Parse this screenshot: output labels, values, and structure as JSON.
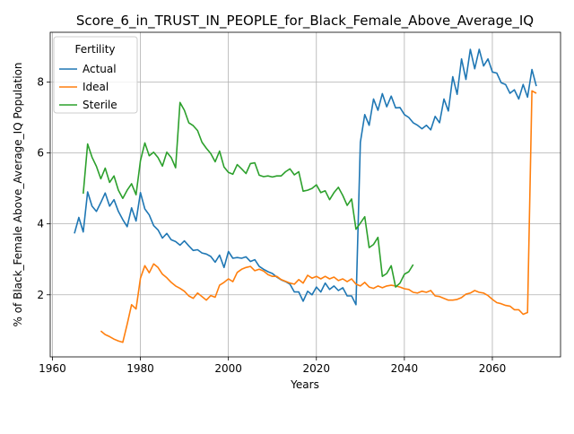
{
  "chart_data": {
    "type": "line",
    "title": "Score_6_in_TRUST_IN_PEOPLE_for_Black_Female_Above_Average_IQ",
    "xlabel": "Years",
    "ylabel": "% of Black_Female Above_Average_IQ Population",
    "xlim": [
      1959.5,
      2075.5
    ],
    "ylim": [
      0.25,
      9.4
    ],
    "xticks": [
      1960,
      1980,
      2000,
      2020,
      2040,
      2060
    ],
    "yticks": [
      2,
      4,
      6,
      8
    ],
    "grid": true,
    "legend": {
      "title": "Fertility",
      "placement": "top-left"
    },
    "series": [
      {
        "name": "Actual",
        "color": "#1f77b4",
        "x": [
          1965,
          1966,
          1967,
          1968,
          1969,
          1970,
          1971,
          1972,
          1973,
          1974,
          1975,
          1976,
          1977,
          1978,
          1979,
          1980,
          1981,
          1982,
          1983,
          1984,
          1985,
          1986,
          1987,
          1988,
          1989,
          1990,
          1991,
          1992,
          1993,
          1994,
          1995,
          1996,
          1997,
          1998,
          1999,
          2000,
          2001,
          2002,
          2003,
          2004,
          2005,
          2006,
          2007,
          2008,
          2009,
          2010,
          2011,
          2012,
          2013,
          2014,
          2015,
          2016,
          2017,
          2018,
          2019,
          2020,
          2021,
          2022,
          2023,
          2024,
          2025,
          2026,
          2027,
          2028,
          2029,
          2030,
          2031,
          2032,
          2033,
          2034,
          2035,
          2036,
          2037,
          2038,
          2039,
          2040,
          2041,
          2042,
          2043,
          2044,
          2045,
          2046,
          2047,
          2048,
          2049,
          2050,
          2051,
          2052,
          2053,
          2054,
          2055,
          2056,
          2057,
          2058,
          2059,
          2060,
          2061,
          2062,
          2063,
          2064,
          2065,
          2066,
          2067,
          2068,
          2069,
          2070
        ],
        "y": [
          3.73,
          4.18,
          3.77,
          4.9,
          4.5,
          4.35,
          4.6,
          4.87,
          4.5,
          4.68,
          4.35,
          4.12,
          3.92,
          4.45,
          4.08,
          4.88,
          4.42,
          4.25,
          3.95,
          3.83,
          3.6,
          3.73,
          3.55,
          3.5,
          3.4,
          3.52,
          3.38,
          3.25,
          3.27,
          3.18,
          3.15,
          3.08,
          2.92,
          3.12,
          2.77,
          3.22,
          3.03,
          3.05,
          3.03,
          3.07,
          2.94,
          2.99,
          2.8,
          2.72,
          2.65,
          2.6,
          2.5,
          2.42,
          2.37,
          2.3,
          2.08,
          2.08,
          1.82,
          2.1,
          2.0,
          2.22,
          2.08,
          2.33,
          2.15,
          2.25,
          2.12,
          2.2,
          1.97,
          1.97,
          1.72,
          6.3,
          7.08,
          6.78,
          7.52,
          7.2,
          7.67,
          7.3,
          7.6,
          7.27,
          7.28,
          7.08,
          7.0,
          6.85,
          6.78,
          6.68,
          6.78,
          6.65,
          7.03,
          6.85,
          7.52,
          7.18,
          8.15,
          7.65,
          8.65,
          8.07,
          8.92,
          8.37,
          8.92,
          8.45,
          8.65,
          8.28,
          8.25,
          7.98,
          7.93,
          7.68,
          7.78,
          7.52,
          7.93,
          7.57,
          8.35,
          7.88
        ]
      },
      {
        "name": "Ideal",
        "color": "#ff7f0e",
        "x": [
          1971,
          1972,
          1973,
          1974,
          1975,
          1976,
          1977,
          1978,
          1979,
          1980,
          1981,
          1982,
          1983,
          1984,
          1985,
          1986,
          1987,
          1988,
          1989,
          1990,
          1991,
          1992,
          1993,
          1994,
          1995,
          1996,
          1997,
          1998,
          1999,
          2000,
          2001,
          2002,
          2003,
          2004,
          2005,
          2006,
          2007,
          2008,
          2009,
          2010,
          2011,
          2012,
          2013,
          2014,
          2015,
          2016,
          2017,
          2018,
          2019,
          2020,
          2021,
          2022,
          2023,
          2024,
          2025,
          2026,
          2027,
          2028,
          2029,
          2030,
          2031,
          2032,
          2033,
          2034,
          2035,
          2036,
          2037,
          2038,
          2039,
          2040,
          2041,
          2042,
          2043,
          2044,
          2045,
          2046,
          2047,
          2048,
          2049,
          2050,
          2051,
          2052,
          2053,
          2054,
          2055,
          2056,
          2057,
          2058,
          2059,
          2060,
          2061,
          2062,
          2063,
          2064,
          2065,
          2066,
          2067,
          2068,
          2069,
          2070
        ],
        "y": [
          0.98,
          0.88,
          0.82,
          0.75,
          0.7,
          0.66,
          1.17,
          1.72,
          1.6,
          2.47,
          2.82,
          2.62,
          2.87,
          2.77,
          2.58,
          2.48,
          2.35,
          2.25,
          2.18,
          2.1,
          1.97,
          1.9,
          2.05,
          1.95,
          1.85,
          1.98,
          1.93,
          2.27,
          2.35,
          2.45,
          2.37,
          2.63,
          2.72,
          2.77,
          2.8,
          2.68,
          2.72,
          2.67,
          2.57,
          2.52,
          2.52,
          2.43,
          2.38,
          2.33,
          2.3,
          2.43,
          2.33,
          2.55,
          2.47,
          2.52,
          2.45,
          2.52,
          2.45,
          2.5,
          2.4,
          2.45,
          2.37,
          2.45,
          2.3,
          2.25,
          2.35,
          2.22,
          2.18,
          2.25,
          2.2,
          2.25,
          2.27,
          2.25,
          2.22,
          2.17,
          2.15,
          2.07,
          2.05,
          2.1,
          2.07,
          2.12,
          1.97,
          1.95,
          1.9,
          1.85,
          1.85,
          1.87,
          1.92,
          2.02,
          2.05,
          2.12,
          2.07,
          2.05,
          1.98,
          1.87,
          1.78,
          1.75,
          1.7,
          1.68,
          1.58,
          1.58,
          1.45,
          1.5,
          7.75,
          7.68
        ]
      },
      {
        "name": "Sterile",
        "color": "#2ca02c",
        "x": [
          1967,
          1968,
          1969,
          1970,
          1971,
          1972,
          1973,
          1974,
          1975,
          1976,
          1977,
          1978,
          1979,
          1980,
          1981,
          1982,
          1983,
          1984,
          1985,
          1986,
          1987,
          1988,
          1989,
          1990,
          1991,
          1992,
          1993,
          1994,
          1995,
          1996,
          1997,
          1998,
          1999,
          2000,
          2001,
          2002,
          2003,
          2004,
          2005,
          2006,
          2007,
          2008,
          2009,
          2010,
          2011,
          2012,
          2013,
          2014,
          2015,
          2016,
          2017,
          2018,
          2019,
          2020,
          2021,
          2022,
          2023,
          2024,
          2025,
          2026,
          2027,
          2028,
          2029,
          2030,
          2031,
          2032,
          2033,
          2034,
          2035,
          2036,
          2037,
          2038,
          2039,
          2040,
          2041,
          2042
        ],
        "y": [
          4.85,
          6.25,
          5.88,
          5.62,
          5.27,
          5.57,
          5.17,
          5.35,
          4.95,
          4.72,
          4.95,
          5.13,
          4.82,
          5.78,
          6.28,
          5.92,
          6.02,
          5.87,
          5.63,
          6.02,
          5.87,
          5.58,
          7.42,
          7.2,
          6.85,
          6.77,
          6.63,
          6.3,
          6.13,
          5.98,
          5.75,
          6.05,
          5.6,
          5.45,
          5.4,
          5.67,
          5.55,
          5.42,
          5.7,
          5.72,
          5.37,
          5.33,
          5.35,
          5.32,
          5.35,
          5.35,
          5.47,
          5.55,
          5.38,
          5.47,
          4.92,
          4.95,
          5.0,
          5.1,
          4.88,
          4.93,
          4.68,
          4.88,
          5.03,
          4.8,
          4.52,
          4.7,
          3.85,
          4.02,
          4.2,
          3.33,
          3.42,
          3.62,
          2.52,
          2.6,
          2.82,
          2.22,
          2.33,
          2.58,
          2.65,
          2.85
        ]
      }
    ]
  }
}
